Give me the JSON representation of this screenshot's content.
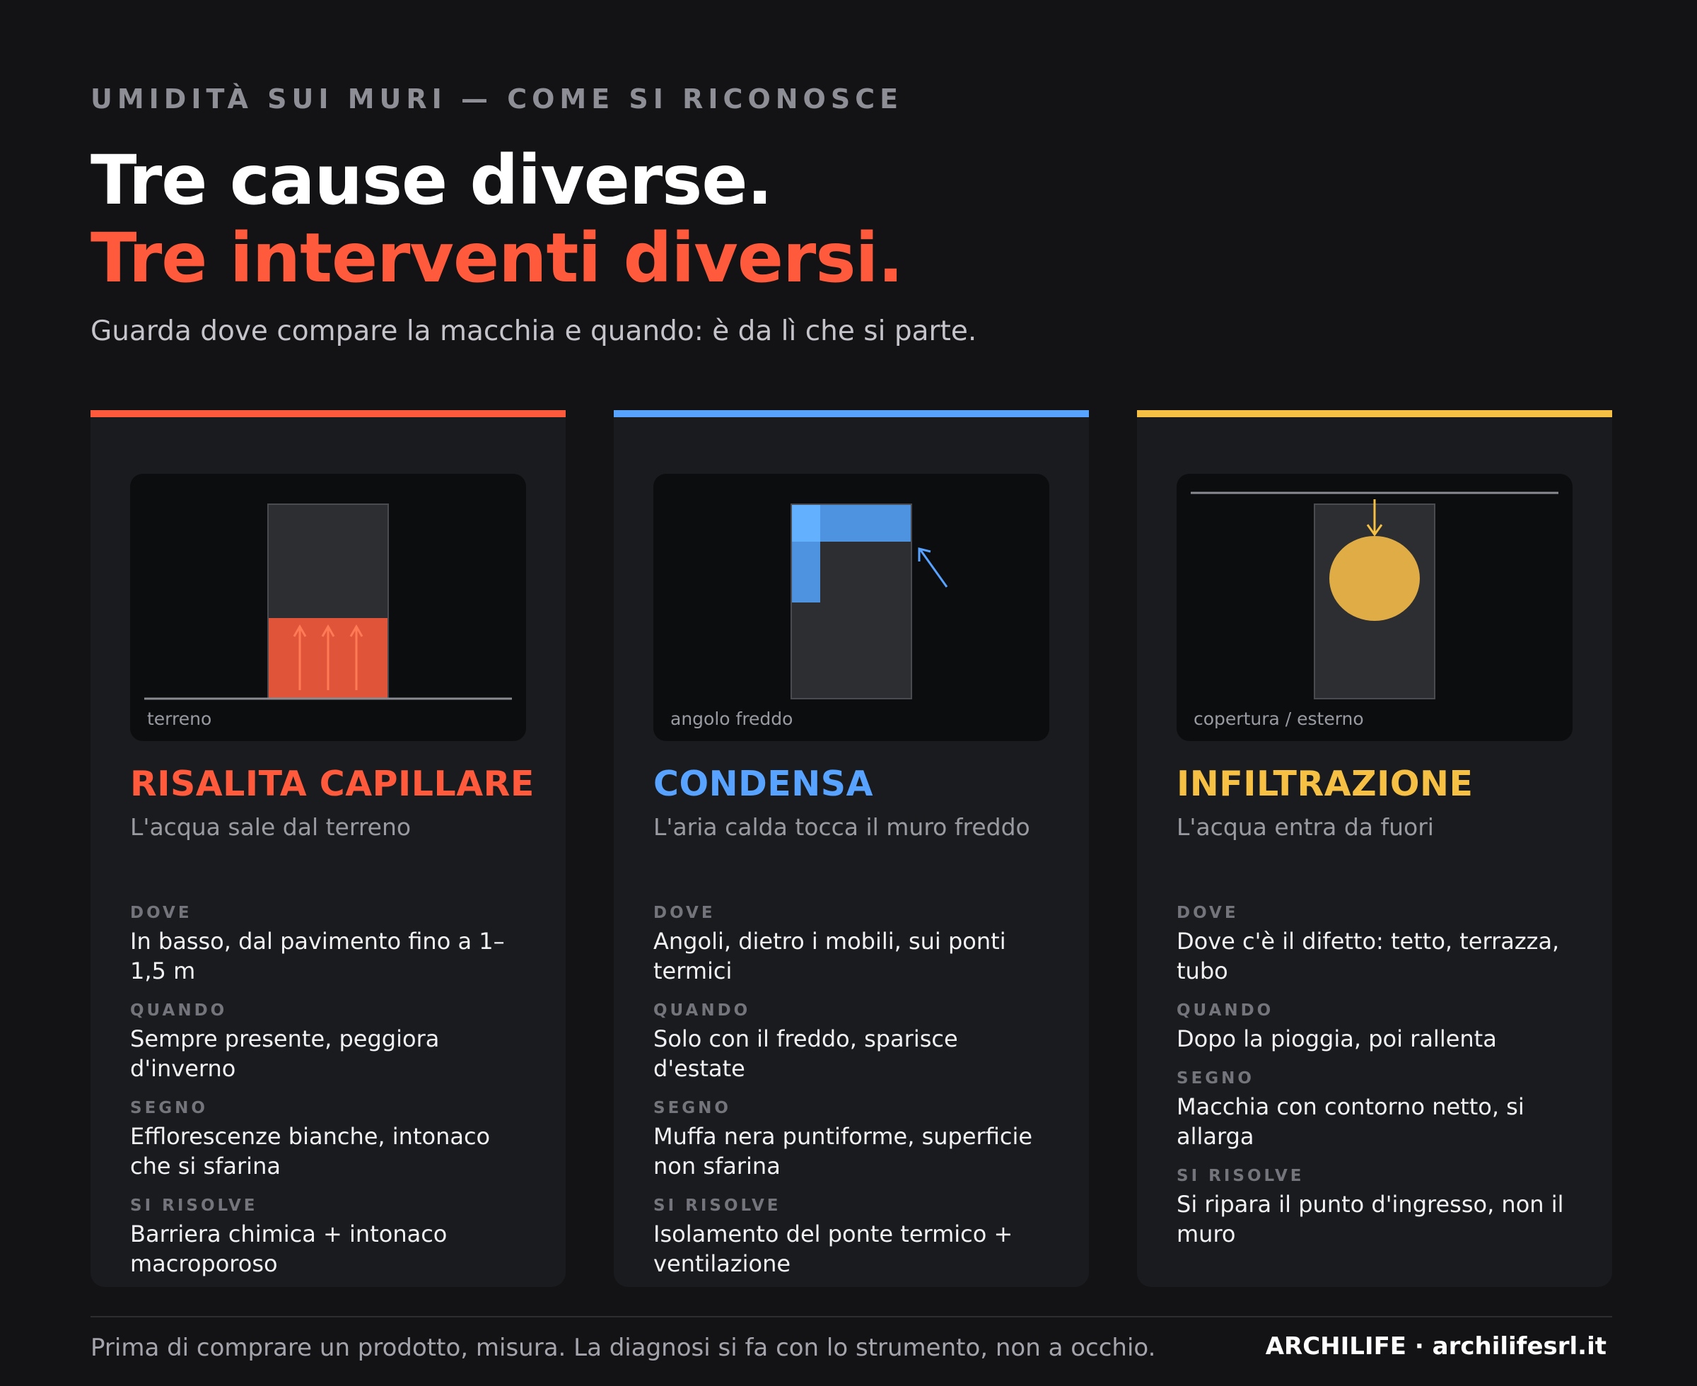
{
  "header": {
    "eyebrow": "UMIDITÀ SUI MURI — COME SI RICONOSCE",
    "title_line1": "Tre cause diverse.",
    "title_line2": "Tre interventi diversi.",
    "subtitle": "Guarda dove compare la macchia e quando: è da lì che si parte."
  },
  "colors": {
    "red": "#ff5a3c",
    "blue": "#57a3ff",
    "yellow": "#f6c044"
  },
  "cards": [
    {
      "illustration_label": "terreno",
      "title": "RISALITA CAPILLARE",
      "subtitle": "L'acqua sale dal terreno",
      "rows": [
        {
          "key": "DOVE",
          "value": "In basso, dal pavimento fino a 1–1,5 m"
        },
        {
          "key": "QUANDO",
          "value": "Sempre presente, peggiora d'inverno"
        },
        {
          "key": "SEGNO",
          "value": "Efflorescenze bianche, intonaco che si sfarina"
        },
        {
          "key": "SI RISOLVE",
          "value": "Barriera chimica + intonaco macroporoso"
        }
      ]
    },
    {
      "illustration_label": "angolo freddo",
      "title": "CONDENSA",
      "subtitle": "L'aria calda tocca il muro freddo",
      "rows": [
        {
          "key": "DOVE",
          "value": "Angoli, dietro i mobili, sui ponti termici"
        },
        {
          "key": "QUANDO",
          "value": "Solo con il freddo, sparisce d'estate"
        },
        {
          "key": "SEGNO",
          "value": "Muffa nera puntiforme, superficie non sfarina"
        },
        {
          "key": "SI RISOLVE",
          "value": "Isolamento del ponte termico + ventilazione"
        }
      ]
    },
    {
      "illustration_label": "copertura / esterno",
      "title": "INFILTRAZIONE",
      "subtitle": "L'acqua entra da fuori",
      "rows": [
        {
          "key": "DOVE",
          "value": "Dove c'è il difetto: tetto, terrazza, tubo"
        },
        {
          "key": "QUANDO",
          "value": "Dopo la pioggia, poi rallenta"
        },
        {
          "key": "SEGNO",
          "value": "Macchia con contorno netto, si allarga"
        },
        {
          "key": "SI RISOLVE",
          "value": "Si ripara il punto d'ingresso, non il muro"
        }
      ]
    }
  ],
  "footer": {
    "note": "Prima di comprare un prodotto, misura. La diagnosi si fa con lo strumento, non a occhio.",
    "brand": "ARCHILIFE · archilifesrl.it"
  }
}
